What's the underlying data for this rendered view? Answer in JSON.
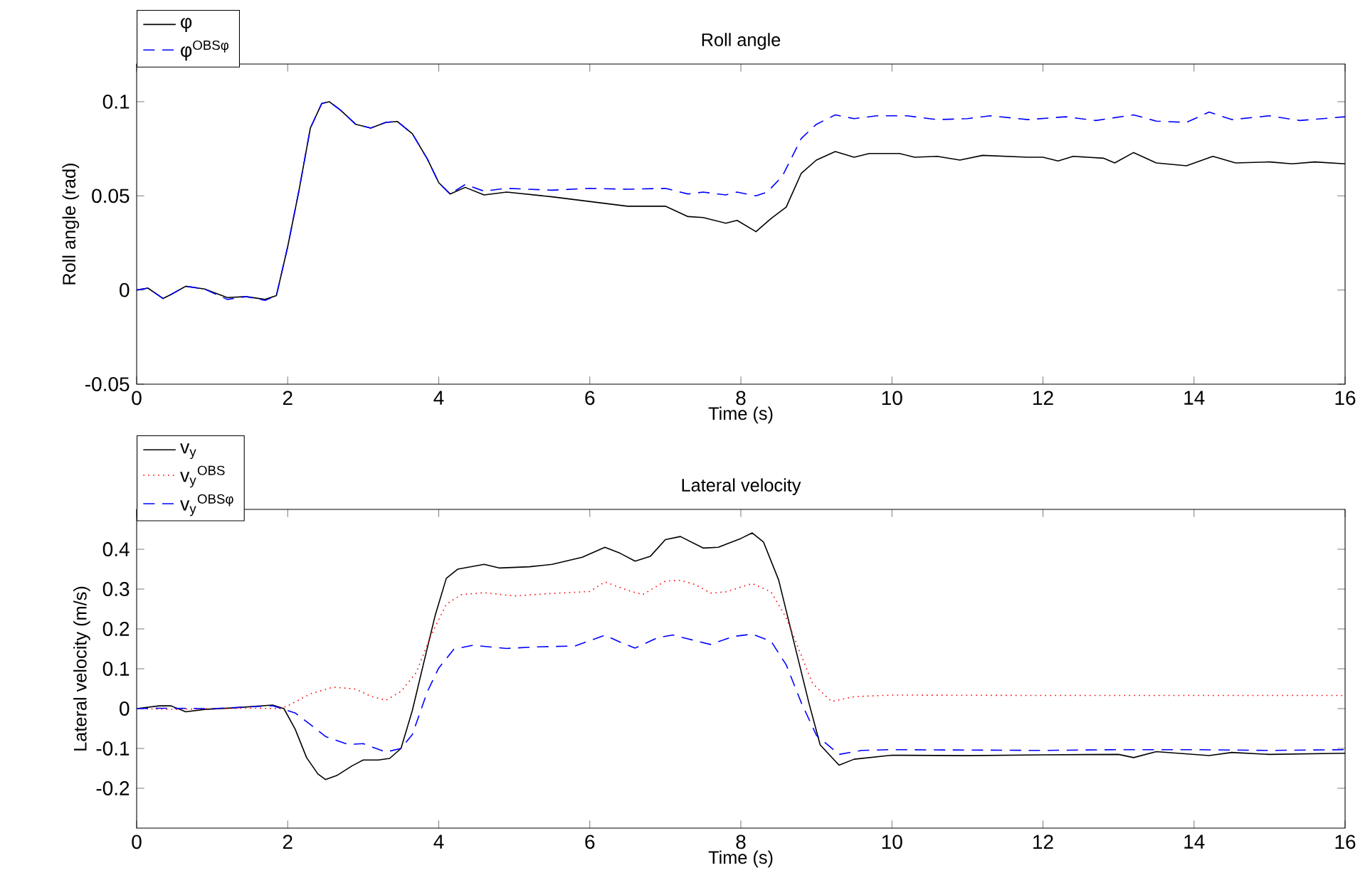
{
  "chart_data": [
    {
      "type": "line",
      "title": "Roll angle",
      "xlabel": "Time (s)",
      "ylabel": "Roll angle (rad)",
      "xlim": [
        0,
        16
      ],
      "xticks": [
        0,
        2,
        4,
        6,
        8,
        10,
        12,
        14,
        16
      ],
      "ylim": [
        -0.05,
        0.12
      ],
      "yticks": [
        -0.05,
        0,
        0.05,
        0.1
      ],
      "legend": "top left",
      "series": [
        {
          "name": "φ",
          "color": "#000000",
          "line_style": "solid",
          "x": [
            0,
            0.15,
            0.35,
            0.45,
            0.65,
            0.9,
            1.2,
            1.45,
            1.7,
            1.85,
            2.0,
            2.15,
            2.3,
            2.45,
            2.55,
            2.7,
            2.9,
            3.1,
            3.3,
            3.45,
            3.65,
            3.85,
            4.0,
            4.15,
            4.35,
            4.6,
            4.9,
            5.5,
            6.0,
            6.5,
            7.0,
            7.3,
            7.5,
            7.8,
            7.95,
            8.2,
            8.4,
            8.6,
            8.8,
            9.0,
            9.25,
            9.5,
            9.7,
            10.1,
            10.3,
            10.6,
            10.9,
            11.2,
            11.8,
            12.0,
            12.2,
            12.4,
            12.8,
            12.95,
            13.2,
            13.5,
            13.9,
            14.25,
            14.55,
            15.0,
            15.3,
            15.6,
            16
          ],
          "values": [
            0.0,
            0.001,
            -0.0045,
            -0.0025,
            0.002,
            0.0005,
            -0.004,
            -0.0035,
            -0.005,
            -0.003,
            0.023,
            0.053,
            0.086,
            0.099,
            0.1,
            0.0955,
            0.088,
            0.086,
            0.089,
            0.0895,
            0.083,
            0.0695,
            0.057,
            0.051,
            0.0545,
            0.0505,
            0.052,
            0.0495,
            0.047,
            0.0445,
            0.0445,
            0.039,
            0.0385,
            0.0355,
            0.037,
            0.031,
            0.038,
            0.044,
            0.062,
            0.069,
            0.0735,
            0.0705,
            0.0725,
            0.0725,
            0.0705,
            0.071,
            0.069,
            0.0715,
            0.0705,
            0.0705,
            0.0685,
            0.071,
            0.07,
            0.0675,
            0.073,
            0.0675,
            0.066,
            0.071,
            0.0675,
            0.068,
            0.067,
            0.068,
            0.067
          ]
        },
        {
          "name": "φ$^{OBSφ}$",
          "color": "#0000ff",
          "line_style": "dashed",
          "x": [
            0,
            0.15,
            0.35,
            0.45,
            0.65,
            0.9,
            1.2,
            1.45,
            1.7,
            1.85,
            2.0,
            2.15,
            2.3,
            2.45,
            2.55,
            2.7,
            2.9,
            3.1,
            3.3,
            3.45,
            3.65,
            3.85,
            4.0,
            4.15,
            4.35,
            4.6,
            4.9,
            5.5,
            6.0,
            6.5,
            7.0,
            7.3,
            7.5,
            7.8,
            7.95,
            8.2,
            8.35,
            8.55,
            8.8,
            9.0,
            9.25,
            9.5,
            9.8,
            10.2,
            10.6,
            11.0,
            11.3,
            11.8,
            12.3,
            12.7,
            13.2,
            13.5,
            13.9,
            14.2,
            14.5,
            15.0,
            15.4,
            16
          ],
          "values": [
            0.0,
            0.001,
            -0.0045,
            -0.0025,
            0.002,
            0.0005,
            -0.005,
            -0.0035,
            -0.0055,
            -0.003,
            0.023,
            0.053,
            0.086,
            0.099,
            0.1,
            0.0955,
            0.088,
            0.086,
            0.089,
            0.0895,
            0.083,
            0.0695,
            0.057,
            0.051,
            0.056,
            0.0525,
            0.054,
            0.053,
            0.054,
            0.0535,
            0.054,
            0.051,
            0.052,
            0.0505,
            0.052,
            0.05,
            0.052,
            0.0605,
            0.0805,
            0.088,
            0.093,
            0.091,
            0.0925,
            0.0925,
            0.0905,
            0.091,
            0.0925,
            0.0905,
            0.092,
            0.09,
            0.093,
            0.0897,
            0.089,
            0.0945,
            0.0905,
            0.0925,
            0.09,
            0.092
          ]
        }
      ]
    },
    {
      "type": "line",
      "title": "Lateral velocity",
      "xlabel": "Time (s)",
      "ylabel": "Lateral velocity (m/s)",
      "xlim": [
        0,
        16
      ],
      "xticks": [
        0,
        2,
        4,
        6,
        8,
        10,
        12,
        14,
        16
      ],
      "ylim": [
        -0.3,
        0.5
      ],
      "yticks": [
        -0.2,
        -0.1,
        0,
        0.1,
        0.2,
        0.3,
        0.4
      ],
      "legend": "top left",
      "series": [
        {
          "name": "v$_{y}$",
          "color": "#000000",
          "line_style": "solid",
          "x": [
            0,
            0.3,
            0.45,
            0.65,
            0.9,
            1.3,
            1.8,
            1.95,
            2.1,
            2.25,
            2.4,
            2.5,
            2.65,
            2.85,
            3.0,
            3.2,
            3.35,
            3.5,
            3.65,
            3.8,
            3.95,
            4.1,
            4.25,
            4.6,
            4.8,
            5.2,
            5.5,
            5.9,
            6.2,
            6.4,
            6.6,
            6.8,
            7.0,
            7.2,
            7.5,
            7.7,
            8.0,
            8.15,
            8.3,
            8.5,
            8.7,
            8.9,
            9.05,
            9.3,
            9.5,
            10.0,
            11.0,
            12.0,
            13.0,
            13.2,
            13.5,
            14.2,
            14.5,
            15.0,
            16
          ],
          "values": [
            0.0,
            0.007,
            0.007,
            -0.008,
            -0.002,
            0.002,
            0.009,
            0.0,
            -0.052,
            -0.123,
            -0.164,
            -0.178,
            -0.168,
            -0.144,
            -0.129,
            -0.129,
            -0.125,
            -0.1,
            -0.005,
            0.114,
            0.232,
            0.327,
            0.35,
            0.362,
            0.353,
            0.356,
            0.362,
            0.38,
            0.405,
            0.39,
            0.37,
            0.382,
            0.424,
            0.432,
            0.403,
            0.405,
            0.427,
            0.441,
            0.418,
            0.323,
            0.169,
            0.015,
            -0.091,
            -0.142,
            -0.127,
            -0.117,
            -0.118,
            -0.116,
            -0.115,
            -0.123,
            -0.108,
            -0.118,
            -0.11,
            -0.115,
            -0.112
          ]
        },
        {
          "name": "v$_{y}$$^{OBS}$",
          "color": "#ff0000",
          "line_style": "dotted",
          "x": [
            0,
            0.5,
            1.0,
            1.5,
            1.9,
            2.0,
            2.3,
            2.6,
            2.9,
            3.1,
            3.3,
            3.5,
            3.7,
            3.9,
            4.1,
            4.3,
            4.6,
            5.0,
            5.5,
            6.0,
            6.2,
            6.5,
            6.7,
            7.0,
            7.2,
            7.4,
            7.6,
            7.8,
            8.15,
            8.4,
            8.6,
            8.75,
            8.95,
            9.2,
            9.5,
            10.0,
            12.0,
            14.0,
            16.0
          ],
          "values": [
            0.0,
            -0.002,
            0.0,
            0.001,
            0.0,
            0.007,
            0.037,
            0.054,
            0.049,
            0.031,
            0.021,
            0.043,
            0.09,
            0.185,
            0.262,
            0.286,
            0.291,
            0.283,
            0.289,
            0.294,
            0.318,
            0.297,
            0.286,
            0.32,
            0.322,
            0.311,
            0.29,
            0.293,
            0.314,
            0.293,
            0.228,
            0.157,
            0.063,
            0.018,
            0.03,
            0.034,
            0.033,
            0.033,
            0.033
          ]
        },
        {
          "name": "v$_{y}$$^{OBSφ}$",
          "color": "#0000ff",
          "line_style": "dashed",
          "x": [
            0,
            0.3,
            1.0,
            1.8,
            2.1,
            2.3,
            2.5,
            2.8,
            3.0,
            3.3,
            3.5,
            3.65,
            3.85,
            4.0,
            4.2,
            4.45,
            4.9,
            5.3,
            5.8,
            6.2,
            6.4,
            6.6,
            6.9,
            7.1,
            7.3,
            7.6,
            7.9,
            8.15,
            8.4,
            8.6,
            8.8,
            9.0,
            9.3,
            9.6,
            10.0,
            12.0,
            13.0,
            14.0,
            15.0,
            16.0
          ],
          "values": [
            0.0,
            0.001,
            0.0,
            0.007,
            -0.011,
            -0.04,
            -0.07,
            -0.09,
            -0.088,
            -0.109,
            -0.1,
            -0.065,
            0.043,
            0.102,
            0.149,
            0.159,
            0.151,
            0.155,
            0.157,
            0.184,
            0.167,
            0.152,
            0.178,
            0.185,
            0.175,
            0.161,
            0.181,
            0.187,
            0.169,
            0.11,
            0.015,
            -0.067,
            -0.115,
            -0.105,
            -0.103,
            -0.105,
            -0.103,
            -0.103,
            -0.105,
            -0.103
          ]
        }
      ]
    }
  ]
}
